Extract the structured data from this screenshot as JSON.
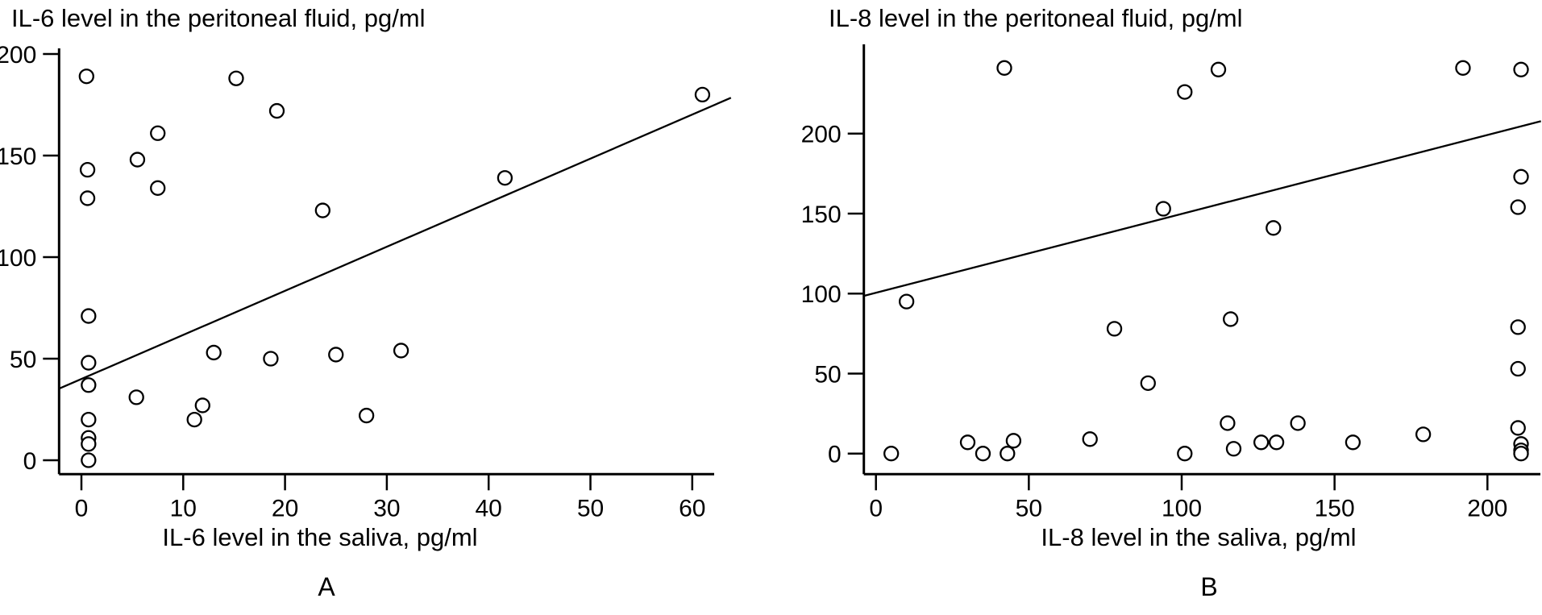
{
  "figure": {
    "background_color": "#ffffff",
    "foreground_color": "#000000",
    "marker": "open-circle"
  },
  "chart_data": [
    {
      "type": "scatter",
      "panel_label": "A",
      "title": "IL-6 level in the peritoneal fluid, pg/ml",
      "xlabel": "IL-6 level in the saliva, pg/ml",
      "ylabel": "",
      "x_ticks": [
        0,
        10,
        20,
        30,
        40,
        50,
        60
      ],
      "y_ticks": [
        0,
        50,
        100,
        150,
        200
      ],
      "xlim": [
        -2.3,
        65
      ],
      "ylim": [
        -7,
        210
      ],
      "grid": false,
      "legend": "none",
      "points": [
        [
          0.5,
          189
        ],
        [
          0.6,
          143
        ],
        [
          0.6,
          129
        ],
        [
          0.7,
          71
        ],
        [
          0.7,
          48
        ],
        [
          0.7,
          37
        ],
        [
          0.7,
          20
        ],
        [
          0.7,
          11
        ],
        [
          0.7,
          8
        ],
        [
          0.7,
          0
        ],
        [
          15.2,
          188
        ],
        [
          19.2,
          172
        ],
        [
          7.5,
          161
        ],
        [
          5.5,
          148
        ],
        [
          7.5,
          134
        ],
        [
          23.7,
          123
        ],
        [
          41.6,
          139
        ],
        [
          61,
          180
        ],
        [
          13,
          53
        ],
        [
          18.6,
          50
        ],
        [
          25,
          52
        ],
        [
          31.4,
          54
        ],
        [
          5.4,
          31
        ],
        [
          11.9,
          27
        ],
        [
          11.1,
          20
        ],
        [
          28,
          22
        ]
      ],
      "trend_line": {
        "intercept": 40,
        "slope": 2.17,
        "x_start": -2.2,
        "x_end": 63.8
      }
    },
    {
      "type": "scatter",
      "panel_label": "B",
      "title": "IL-8 level in the peritoneal fluid, pg/ml",
      "xlabel": "IL-8 level in the saliva, pg/ml",
      "ylabel": "",
      "x_ticks": [
        0,
        50,
        100,
        150,
        200
      ],
      "y_ticks": [
        0,
        50,
        100,
        150,
        200
      ],
      "xlim": [
        -4,
        217.5
      ],
      "ylim": [
        -13,
        256
      ],
      "grid": false,
      "legend": "none",
      "points": [
        [
          42,
          241
        ],
        [
          112,
          240
        ],
        [
          192,
          241
        ],
        [
          211,
          240
        ],
        [
          101,
          226
        ],
        [
          211,
          173
        ],
        [
          210,
          154
        ],
        [
          94,
          153
        ],
        [
          130,
          141
        ],
        [
          10,
          95
        ],
        [
          116,
          84
        ],
        [
          78,
          78
        ],
        [
          210,
          79
        ],
        [
          89,
          44
        ],
        [
          210,
          53
        ],
        [
          5,
          0
        ],
        [
          30,
          7
        ],
        [
          35,
          0
        ],
        [
          43,
          0
        ],
        [
          45,
          8
        ],
        [
          70,
          9
        ],
        [
          101,
          0
        ],
        [
          115,
          19
        ],
        [
          117,
          3
        ],
        [
          126,
          7
        ],
        [
          131,
          7
        ],
        [
          138,
          19
        ],
        [
          156,
          7
        ],
        [
          179,
          12
        ],
        [
          210,
          16
        ],
        [
          211,
          6
        ],
        [
          211,
          2
        ],
        [
          211,
          0
        ]
      ],
      "trend_line": {
        "intercept": 100.5,
        "slope": 0.493,
        "x_start": -4,
        "x_end": 217.5
      }
    }
  ]
}
